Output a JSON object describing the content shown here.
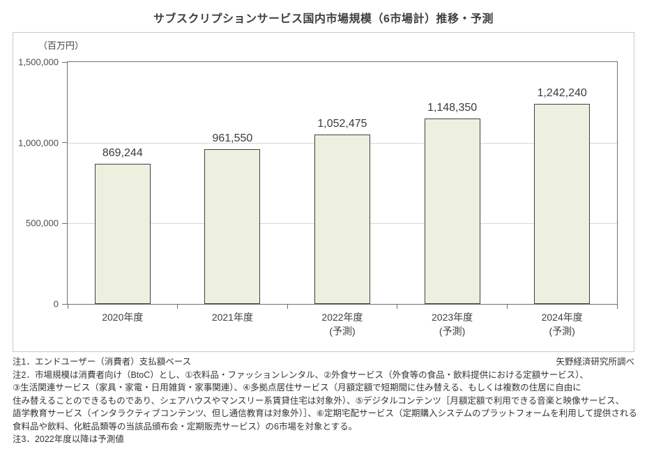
{
  "title": "サブスクリプションサービス国内市場規模（6市場計）推移・予測",
  "unit_label": "（百万円）",
  "source_credit": "矢野経済研究所調べ",
  "chart_data": {
    "type": "bar",
    "title": "サブスクリプションサービス国内市場規模（6市場計）推移・予測",
    "unit": "百万円",
    "categories": [
      {
        "line1": "2020年度",
        "line2": ""
      },
      {
        "line1": "2021年度",
        "line2": ""
      },
      {
        "line1": "2022年度",
        "line2": "(予測)"
      },
      {
        "line1": "2023年度",
        "line2": "(予測)"
      },
      {
        "line1": "2024年度",
        "line2": "(予測)"
      }
    ],
    "values": [
      869244,
      961550,
      1052475,
      1148350,
      1242240
    ],
    "value_labels": [
      "869,244",
      "961,550",
      "1,052,475",
      "1,148,350",
      "1,242,240"
    ],
    "ylim": [
      0,
      1500000
    ],
    "yticks": [
      0,
      500000,
      1000000,
      1500000
    ],
    "ytick_labels": [
      "0",
      "500,000",
      "1,000,000",
      "1,500,000"
    ],
    "xlabel": "",
    "ylabel": "百万円",
    "grid": true,
    "legend": "none",
    "bar_fill": "#edf0df",
    "bar_border": "#3f3f3f"
  },
  "notes": [
    {
      "text": "注1．エンドユーザー（消費者）支払額ベース",
      "right": "矢野経済研究所調べ"
    },
    {
      "text": "注2．市場規模は消費者向け（BtoC）とし、①衣料品・ファッションレンタル、②外食サービス（外食等の食品・飲料提供における定額サービス）、",
      "right": ""
    },
    {
      "text": "③生活関連サービス（家具・家電・日用雑貨・家事関連）、④多拠点居住サービス（月額定額で短期間に住み替える、もしくは複数の住居に自由に",
      "right": ""
    },
    {
      "text": "住み替えることのできるものであり、シェアハウスやマンスリー系賃貸住宅は対象外）、⑤デジタルコンテンツ［月額定額で利用できる音楽と映像サービス、",
      "right": ""
    },
    {
      "text": "語学教育サービス（インタラクティブコンテンツ、但し通信教育は対象外）］、⑥定期宅配サービス（定期購入システムのプラットフォームを利用して提供される",
      "right": ""
    },
    {
      "text": "食料品や飲料、化粧品類等の当該品頒布会・定期販売サービス）の6市場を対象とする。",
      "right": ""
    },
    {
      "text": "注3．2022年度以降は予測値",
      "right": ""
    }
  ]
}
